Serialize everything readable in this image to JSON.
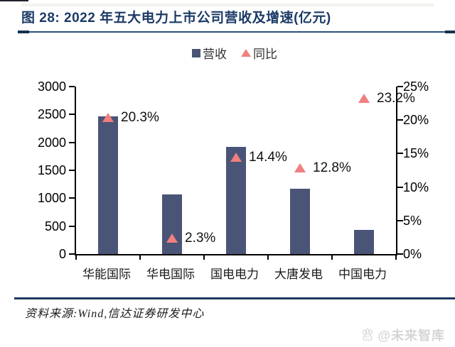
{
  "figure": {
    "title": "图 28: 2022 年五大电力上市公司营收及增速(亿元)",
    "source": "资料来源:Wind,信达证券研发中心",
    "watermark": "@未来智库"
  },
  "legend": [
    {
      "label": "营收",
      "marker": "square"
    },
    {
      "label": "同比",
      "marker": "triangle"
    }
  ],
  "colors": {
    "bar": "#4a5477",
    "triangle": "#f07f7f",
    "title": "#1b3a66",
    "rule": "#2d4d7c"
  },
  "chart_data": {
    "type": "bar",
    "categories": [
      "华能国际",
      "华电国际",
      "国电电力",
      "大唐发电",
      "中国电力"
    ],
    "series": [
      {
        "name": "营收",
        "type": "bar",
        "axis": "left",
        "values": [
          2467,
          1068,
          1924,
          1167,
          437
        ]
      },
      {
        "name": "同比",
        "type": "point",
        "axis": "right",
        "values": [
          20.3,
          2.3,
          14.4,
          12.8,
          23.2
        ],
        "labels": [
          "20.3%",
          "2.3%",
          "14.4%",
          "12.8%",
          "23.2%"
        ]
      }
    ],
    "left_axis": {
      "min": 0,
      "max": 3000,
      "ticks": [
        "0",
        "500",
        "1000",
        "1500",
        "2000",
        "2500",
        "3000"
      ]
    },
    "right_axis": {
      "min": 0,
      "max": 25,
      "ticks": [
        "0%",
        "5%",
        "10%",
        "15%",
        "20%",
        "25%"
      ]
    },
    "grid": false,
    "legend_position": "top-center",
    "title": "图 28: 2022 年五大电力上市公司营收及增速(亿元)"
  }
}
